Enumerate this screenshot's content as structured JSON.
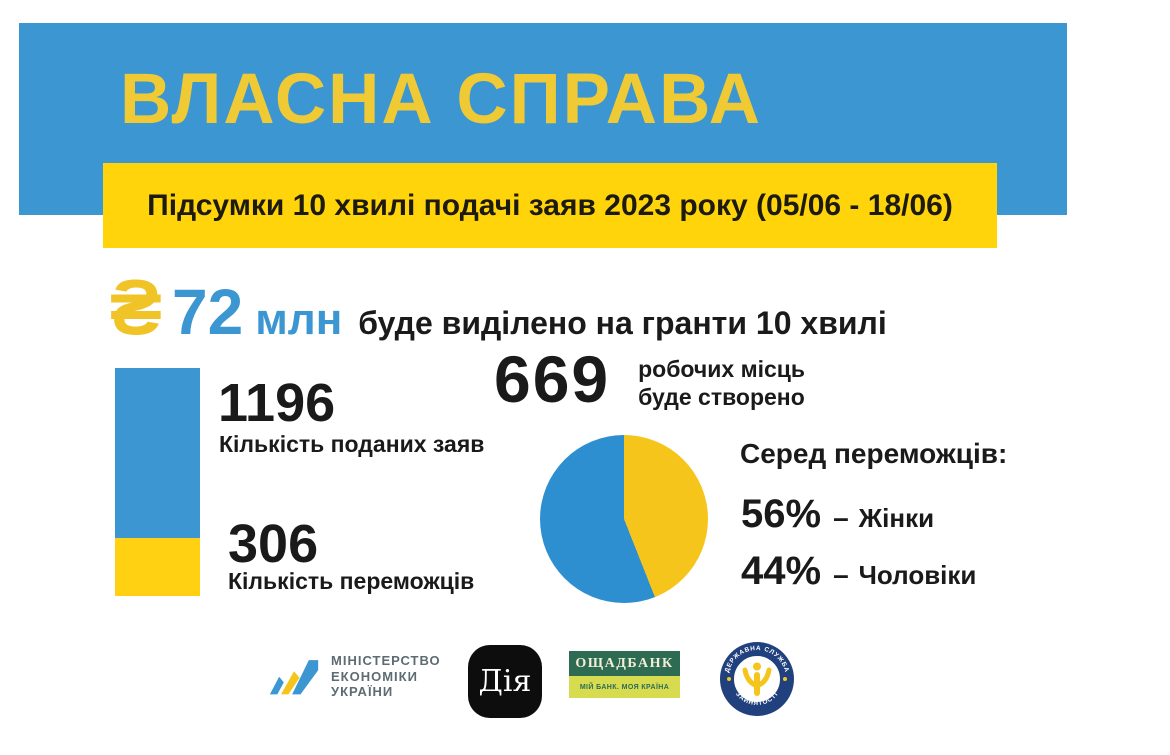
{
  "header": {
    "title": "ВЛАСНА СПРАВА",
    "subtitle": "Підсумки 10 хвилі подачі заяв 2023 року (05/06 - 18/06)"
  },
  "headline": {
    "currency_symbol": "₴",
    "amount": "72",
    "unit": "млн",
    "text": "буде виділено на гранти 10 хвилі"
  },
  "stats": {
    "applications": {
      "value": "1196",
      "label": "Кількість поданих заяв"
    },
    "winners": {
      "value": "306",
      "label": "Кількість переможців"
    },
    "jobs": {
      "value": "669",
      "label_line1": "робочих місць",
      "label_line2": "буде створено"
    }
  },
  "gender": {
    "heading": "Серед переможців:",
    "rows": [
      {
        "percent": "56%",
        "separator": "–",
        "label": "Жінки"
      },
      {
        "percent": "44%",
        "separator": "–",
        "label": "Чоловіки"
      }
    ]
  },
  "logos": {
    "ministry": {
      "line1": "МІНІСТЕРСТВО",
      "line2": "ЕКОНОМІКИ",
      "line3": "УКРАЇНИ"
    },
    "dia": {
      "label": "Дія"
    },
    "oschadbank": {
      "name": "ОЩАДБАНК",
      "tagline": "МІЙ БАНК. МОЯ КРАЇНА"
    },
    "employment": {
      "arc_top": "ДЕРЖАВНА СЛУЖБА",
      "arc_bottom": "ЗАЙНЯТОСТІ"
    }
  },
  "colors": {
    "band_blue": "#3B96D2",
    "banner_yellow": "#FFD40A",
    "title_yellow": "#F0CA35",
    "bar_blue": "#3B96D2",
    "bar_yellow": "#FFD112",
    "pie_blue": "#2E8FD0",
    "pie_yellow": "#F6C51B",
    "text_dark": "#1A1A1A",
    "ministry_gray": "#5E6B72",
    "oschad_green": "#2E6B53",
    "oschad_lime": "#D6DB50",
    "dia_black": "#0D0D0D",
    "employment_navy": "#20417E"
  },
  "chart_data": [
    {
      "type": "bar",
      "variant": "single-stacked-column",
      "categories": [
        "Кількість поданих заяв",
        "Кількість переможців"
      ],
      "values": [
        1196,
        306
      ],
      "colors": [
        "#3B96D2",
        "#FFD112"
      ],
      "title": "",
      "xlabel": "",
      "ylabel": "",
      "note": "one column; yellow bottom segment shows winners (306) as share of applications (1196)"
    },
    {
      "type": "pie",
      "title": "Серед переможців:",
      "labels": [
        "Жінки",
        "Чоловіки"
      ],
      "values": [
        56,
        44
      ],
      "unit": "%",
      "colors": [
        "#2E8FD0",
        "#F6C51B"
      ],
      "legend_position": "right",
      "start_angle_deg": 0
    }
  ]
}
